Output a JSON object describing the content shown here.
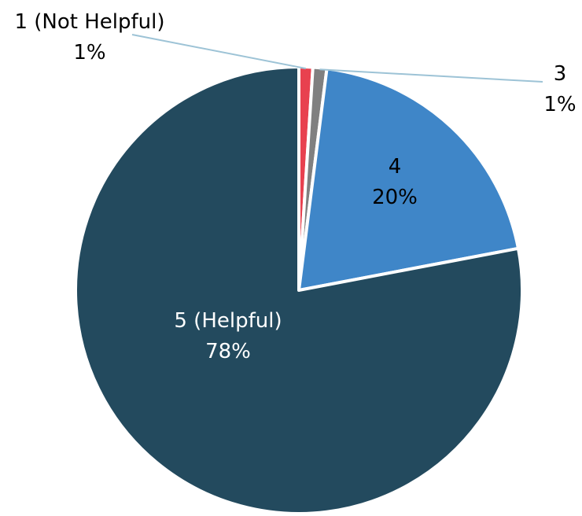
{
  "chart_data": {
    "type": "pie",
    "slices": [
      {
        "label": "1 (Not Helpful)",
        "value": 1,
        "value_label": "1%",
        "color": "#e8414f"
      },
      {
        "label": "3",
        "value": 1,
        "value_label": "1%",
        "color": "#808080"
      },
      {
        "label": "4",
        "value": 20,
        "value_label": "20%",
        "color": "#3f86c8"
      },
      {
        "label": "5 (Helpful)",
        "value": 78,
        "value_label": "78%",
        "color": "#234a5e"
      }
    ],
    "start": "12 o'clock",
    "direction": "clockwise",
    "slice_border_color": "#ffffff",
    "leader_line_color": "#9dc3d6",
    "label_color_outside": "#000000",
    "label_color_inside_dark": "#ffffff",
    "label_color_inside_light": "#000000"
  }
}
